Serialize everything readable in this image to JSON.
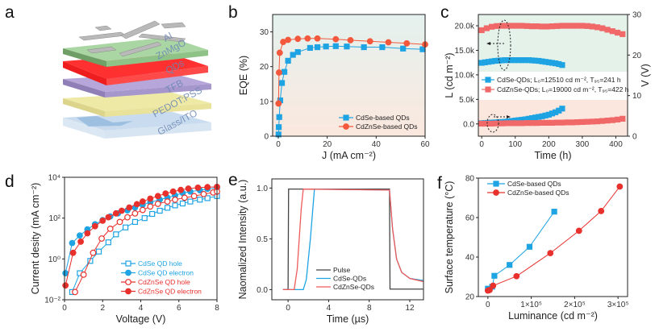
{
  "panels": {
    "a": "a",
    "b": "b",
    "c": "c",
    "d": "d",
    "e": "e",
    "f": "f"
  },
  "device_schematic": {
    "layers": [
      "Al",
      "ZnMgO",
      "QDs",
      "TFB",
      "PEDOT:PSS",
      "Glass/ITO"
    ],
    "colors": {
      "Al": "#b9b9b9",
      "ZnMgO": "#9fcf9a",
      "QDs": "#ff2a2a",
      "TFB": "#b7a6d9",
      "PEDOT:PSS": "#efe9a6",
      "Glass/ITO": "#c9dcef"
    }
  },
  "chart_data": [
    {
      "id": "b",
      "type": "line",
      "xlabel": "J (mA cm⁻²)",
      "ylabel": "EQE (%)",
      "xlim": [
        -2.3,
        60
      ],
      "ylim": [
        0,
        35
      ],
      "xticks": [
        0,
        20,
        40,
        60
      ],
      "xticklabels": [
        "0",
        "20",
        "40",
        "60"
      ],
      "yticks": [
        0,
        10,
        20,
        30
      ],
      "yticklabels": [
        "0",
        "10",
        "20",
        "30"
      ],
      "background": [
        "#e4f1ee",
        "#fbe8de"
      ],
      "legend_position": "bottom-right",
      "series": [
        {
          "name": "CdSe-based QDs",
          "color": "#1ea3e3",
          "marker": "square",
          "filled": true,
          "x": [
            0.1,
            0.2,
            0.4,
            0.8,
            1.5,
            2.5,
            4,
            6,
            8,
            13,
            16,
            19.5,
            23.5,
            28,
            35,
            42.5,
            51,
            59
          ],
          "y": [
            0.5,
            2.6,
            5.5,
            10.3,
            15.3,
            18.5,
            21.7,
            23.4,
            24.2,
            25.4,
            25.6,
            25.8,
            25.9,
            25.8,
            25.6,
            25.6,
            25.2,
            25.0
          ]
        },
        {
          "name": "CdZnSe-based QDs",
          "color": "#f3583c",
          "marker": "circle",
          "filled": true,
          "x": [
            0.1,
            0.3,
            0.6,
            2,
            4,
            8,
            12,
            16,
            23.5,
            29.5,
            37.5,
            45,
            52.5,
            60
          ],
          "y": [
            9.4,
            18.3,
            24,
            27.1,
            27.7,
            28,
            28.1,
            28.1,
            27.9,
            27.6,
            27.3,
            27,
            26.7,
            26.4
          ]
        }
      ]
    },
    {
      "id": "c",
      "type": "scatter",
      "xlabel": "Time (h)",
      "ylabel": "L (cd m⁻²)",
      "y2label": "V (V)",
      "xlim": [
        -10,
        435
      ],
      "ylim": [
        -2500,
        22300
      ],
      "y2lim": [
        0,
        30
      ],
      "xticks": [
        0,
        100,
        200,
        300,
        400
      ],
      "xticklabels": [
        "0",
        "100",
        "200",
        "300",
        "400"
      ],
      "yticks": [
        0,
        5000,
        10000,
        15000,
        20000
      ],
      "yticklabels": [
        "0.0",
        "5.0k",
        "10.0k",
        "15.0k",
        "20.0k"
      ],
      "y2ticks": [
        0,
        10,
        20,
        30
      ],
      "y2ticklabels": [
        "0",
        "10",
        "20",
        "30"
      ],
      "background": [
        "#e4f2ea",
        "#fbe7de"
      ],
      "legend_position": "center",
      "series": [
        {
          "name": "CdSe-QDs; L₀=12510 cd m⁻², T₉₅=241 h",
          "color": "#1ea3e3",
          "marker": "square",
          "filled": true,
          "axis": "left",
          "x": [
            0,
            10,
            20,
            30,
            40,
            50,
            60,
            70,
            80,
            90,
            100,
            110,
            120,
            130,
            140,
            150,
            160,
            170,
            180,
            190,
            200,
            210,
            220,
            230,
            240
          ],
          "y": [
            12450,
            12550,
            12650,
            12750,
            12850,
            12900,
            12950,
            13000,
            13000,
            13000,
            13000,
            13000,
            13000,
            13000,
            13000,
            12950,
            12900,
            12850,
            12750,
            12650,
            12550,
            12450,
            12350,
            12200,
            12000
          ]
        },
        {
          "name": "",
          "color": "#1ea3e3",
          "marker": "square",
          "filled": true,
          "axis": "right",
          "x": [
            0,
            10,
            20,
            30,
            40,
            50,
            60,
            70,
            80,
            90,
            100,
            110,
            120,
            130,
            140,
            150,
            160,
            170,
            180,
            190,
            200,
            210,
            220,
            230,
            240
          ],
          "y": [
            3.2,
            3.25,
            3.3,
            3.35,
            3.4,
            3.45,
            3.5,
            3.55,
            3.65,
            3.75,
            3.85,
            3.95,
            4.05,
            4.15,
            4.3,
            4.45,
            4.6,
            4.75,
            4.9,
            5.1,
            5.3,
            5.6,
            5.9,
            6.3,
            6.8
          ]
        },
        {
          "name": "CdZnSe-QDs; L₀=19000 cd m⁻², T₉₅=422 h",
          "color": "#f06868",
          "marker": "square",
          "filled": true,
          "axis": "left",
          "x": [
            0,
            15,
            30,
            45,
            60,
            75,
            90,
            105,
            120,
            135,
            150,
            165,
            180,
            195,
            210,
            225,
            240,
            255,
            270,
            285,
            300,
            315,
            330,
            345,
            360,
            375,
            390,
            405,
            420
          ],
          "y": [
            19100,
            19500,
            19800,
            19950,
            20000,
            20000,
            20000,
            20000,
            20000,
            19950,
            19900,
            19900,
            19850,
            19850,
            19900,
            19950,
            20000,
            20000,
            20000,
            20000,
            20000,
            19950,
            19850,
            19700,
            19500,
            19200,
            18900,
            18600,
            18300
          ]
        },
        {
          "name": "",
          "color": "#f06868",
          "marker": "square",
          "filled": true,
          "axis": "right",
          "x": [
            0,
            15,
            30,
            45,
            60,
            75,
            90,
            105,
            120,
            135,
            150,
            165,
            180,
            195,
            210,
            225,
            240,
            255,
            270,
            285,
            300,
            315,
            330,
            345,
            360,
            375,
            390,
            405,
            420
          ],
          "y": [
            3.1,
            3.1,
            3.1,
            3.15,
            3.15,
            3.2,
            3.2,
            3.2,
            3.2,
            3.25,
            3.25,
            3.25,
            3.3,
            3.3,
            3.3,
            3.35,
            3.35,
            3.4,
            3.4,
            3.45,
            3.5,
            3.55,
            3.6,
            3.65,
            3.75,
            3.85,
            3.95,
            4.1,
            4.3
          ]
        }
      ]
    },
    {
      "id": "d",
      "type": "line",
      "xlabel": "Voltage (V)",
      "ylabel": "Current desity (mA cm⁻²)",
      "xlim": [
        0,
        8
      ],
      "ylim": [
        0.01,
        10000
      ],
      "ylog": true,
      "xticks": [
        0,
        2,
        4,
        6,
        8
      ],
      "xticklabels": [
        "0",
        "2",
        "4",
        "6",
        "8"
      ],
      "yticks": [
        0.01,
        1,
        100,
        10000
      ],
      "yticklabels": [
        "10⁻²",
        "10⁰",
        "10²",
        "10⁴"
      ],
      "legend_position": "bottom-right",
      "series": [
        {
          "name": "CdSe QD hole",
          "color": "#1ea3e3",
          "marker": "square",
          "filled": false,
          "x": [
            0.4,
            0.8,
            1.35,
            1.8,
            2.3,
            2.7,
            3.2,
            3.7,
            4.2,
            4.6,
            5,
            5.4,
            5.8,
            6.2,
            6.6,
            7.1,
            7.5,
            8
          ],
          "y": [
            0.024,
            0.2,
            0.8,
            2.3,
            6.5,
            16,
            35,
            65,
            100,
            160,
            230,
            320,
            420,
            520,
            650,
            800,
            950,
            1200
          ]
        },
        {
          "name": "CdSe QD electron",
          "color": "#1ea3e3",
          "marker": "circle",
          "filled": true,
          "x": [
            0.05,
            0.4,
            0.8,
            1.2,
            1.6,
            2,
            2.4,
            2.8,
            3.3,
            3.7,
            4.1,
            4.5,
            5,
            5.4,
            5.8,
            6.2,
            6.6,
            7.1,
            7.5,
            8
          ],
          "y": [
            0.2,
            6,
            14,
            28,
            50,
            80,
            120,
            170,
            240,
            330,
            450,
            600,
            800,
            1000,
            1300,
            1700,
            2000,
            2300,
            2700,
            3000
          ]
        },
        {
          "name": "CdZnSe QD hole",
          "color": "#e8302c",
          "marker": "circle",
          "filled": false,
          "x": [
            0.55,
            1,
            1.5,
            1.95,
            2.4,
            2.9,
            3.3,
            3.7,
            4.1,
            4.5,
            4.9,
            5.4,
            5.8,
            6.3,
            6.8,
            7.3,
            7.8,
            8
          ],
          "y": [
            0.024,
            0.17,
            2,
            10,
            30,
            65,
            110,
            170,
            250,
            370,
            500,
            650,
            800,
            1000,
            1200,
            1500,
            1800,
            2000
          ]
        },
        {
          "name": "CdZnSe QD electron",
          "color": "#e8302c",
          "marker": "circle",
          "filled": true,
          "x": [
            0.05,
            0.45,
            0.85,
            1.2,
            1.6,
            2,
            2.3,
            2.7,
            3,
            3.4,
            3.8,
            4.1,
            4.5,
            4.9,
            5.3,
            5.7,
            6.1,
            6.5,
            7,
            7.5,
            8
          ],
          "y": [
            0.05,
            2,
            7,
            18,
            40,
            75,
            110,
            170,
            230,
            330,
            480,
            650,
            900,
            1200,
            1600,
            2000,
            2400,
            2800,
            3100,
            3300,
            3400
          ]
        }
      ]
    },
    {
      "id": "e",
      "type": "line",
      "xlabel": "Time (µs)",
      "ylabel": "Naomalized Intensity (a.u.)",
      "xlim": [
        -1.6,
        13.35
      ],
      "ylim": [
        -0.1,
        1.09
      ],
      "xticks": [
        0,
        4,
        8,
        12
      ],
      "xticklabels": [
        "0",
        "4",
        "8",
        "12"
      ],
      "yticks": [
        0,
        0.5,
        1
      ],
      "yticklabels": [
        "0.0",
        "0.5",
        "1.0"
      ],
      "legend_position": "bottom-center",
      "series": [
        {
          "name": "Pulse",
          "color": "#444444",
          "marker": "none",
          "x": [
            -0.5,
            0,
            0.05,
            10,
            10.05,
            13.3
          ],
          "y": [
            0,
            0,
            0.99,
            0.99,
            0.005,
            0.005
          ]
        },
        {
          "name": "CdSe-QDs",
          "color": "#1ea3e3",
          "marker": "none",
          "x": [
            -0.5,
            1.5,
            1.8,
            2.2,
            2.6,
            10,
            10.3,
            10.7,
            11.2,
            12,
            13.3
          ],
          "y": [
            0,
            0,
            0.1,
            0.5,
            0.99,
            0.98,
            0.6,
            0.3,
            0.17,
            0.11,
            0.09
          ]
        },
        {
          "name": "CdZnSe-QDs",
          "color": "#f05a5a",
          "marker": "none",
          "x": [
            -0.5,
            0.6,
            0.9,
            1.3,
            1.5,
            10,
            10.3,
            10.7,
            11.2,
            12,
            13.3
          ],
          "y": [
            0,
            0,
            0.2,
            0.8,
            0.99,
            0.98,
            0.6,
            0.3,
            0.17,
            0.11,
            0.08
          ]
        }
      ]
    },
    {
      "id": "f",
      "type": "line",
      "xlabel": "Luminance (cd m⁻²)",
      "ylabel": "Surface temperature (°C)",
      "xlim": [
        -22000,
        322000
      ],
      "ylim": [
        20,
        80
      ],
      "xticks": [
        0,
        100000,
        200000,
        300000
      ],
      "xticklabels": [
        "0",
        "1×10⁵",
        "2×10⁵",
        "3×10⁵"
      ],
      "yticks": [
        20,
        40,
        60,
        80
      ],
      "yticklabels": [
        "20",
        "40",
        "60",
        "80"
      ],
      "legend_position": "top-left",
      "series": [
        {
          "name": "CdSe-based QDs",
          "color": "#1ea3e3",
          "marker": "square",
          "filled": true,
          "x": [
            0,
            10000,
            15000,
            50000,
            96000,
            153000
          ],
          "y": [
            24,
            25,
            30.5,
            36,
            45.2,
            63
          ]
        },
        {
          "name": "CdZnSe-based QDs",
          "color": "#e8302c",
          "marker": "circle",
          "filled": true,
          "x": [
            0,
            4000,
            12000,
            66000,
            144000,
            210000,
            261000,
            304000
          ],
          "y": [
            23,
            23.3,
            25.5,
            30.3,
            42,
            53.3,
            63.3,
            75.7
          ]
        }
      ]
    }
  ]
}
